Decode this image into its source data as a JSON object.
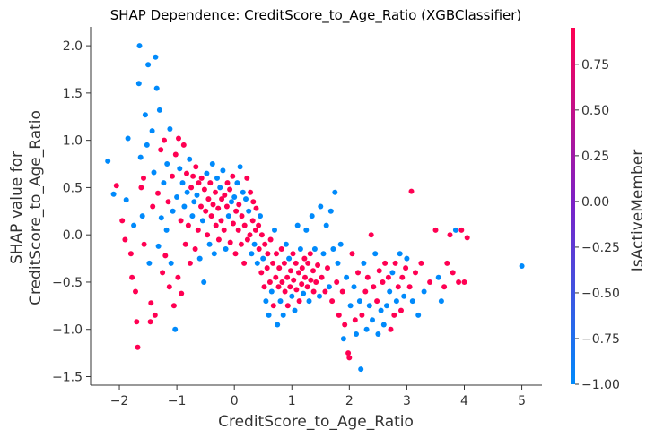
{
  "chart_data": {
    "type": "scatter",
    "title": "SHAP Dependence: CreditScore_to_Age_Ratio (XGBClassifier)",
    "xlabel": "CreditScore_to_Age_Ratio",
    "ylabel_line1": "SHAP value for",
    "ylabel_line2": "CreditScore_to_Age_Ratio",
    "xlim": [
      -2.5,
      5.35
    ],
    "ylim": [
      -1.59,
      2.2
    ],
    "xticks": [
      -2,
      -1,
      0,
      1,
      2,
      3,
      4,
      5
    ],
    "xtick_labels": [
      "−2",
      "−1",
      "0",
      "1",
      "2",
      "3",
      "4",
      "5"
    ],
    "yticks": [
      2.0,
      1.5,
      1.0,
      0.5,
      0.0,
      -0.5,
      -1.0,
      -1.5
    ],
    "ytick_labels": [
      "2.0",
      "1.5",
      "1.0",
      "0.5",
      "0.0",
      "−0.5",
      "−1.0",
      "−1.5"
    ],
    "colorbar": {
      "label": "IsActiveMember",
      "range": [
        -1.0,
        0.95
      ],
      "ticks": [
        0.75,
        0.5,
        0.25,
        0.0,
        -0.25,
        -0.5,
        -0.75,
        -1.0
      ],
      "tick_labels": [
        "0.75",
        "0.50",
        "0.25",
        "0.00",
        "−0.25",
        "−0.50",
        "−0.75",
        "−1.00"
      ],
      "color_low": "#008afb",
      "color_mid": "#7a22c8",
      "color_high": "#ff0052"
    },
    "grid": false,
    "points": [
      [
        -2.2,
        0.78,
        0
      ],
      [
        -2.1,
        0.43,
        0
      ],
      [
        -2.05,
        0.52,
        1
      ],
      [
        -1.95,
        0.15,
        1
      ],
      [
        -1.9,
        -0.05,
        1
      ],
      [
        -1.88,
        0.37,
        0
      ],
      [
        -1.85,
        1.02,
        0
      ],
      [
        -1.8,
        -0.2,
        1
      ],
      [
        -1.78,
        -0.45,
        1
      ],
      [
        -1.75,
        0.1,
        0
      ],
      [
        -1.72,
        -0.6,
        1
      ],
      [
        -1.7,
        -0.92,
        1
      ],
      [
        -1.68,
        -1.19,
        1
      ],
      [
        -1.66,
        1.6,
        0
      ],
      [
        -1.65,
        2.0,
        0
      ],
      [
        -1.63,
        0.82,
        0
      ],
      [
        -1.62,
        0.5,
        1
      ],
      [
        -1.6,
        0.2,
        0
      ],
      [
        -1.58,
        0.6,
        1
      ],
      [
        -1.57,
        -0.1,
        1
      ],
      [
        -1.55,
        1.27,
        0
      ],
      [
        -1.52,
        0.95,
        0
      ],
      [
        -1.5,
        1.8,
        0
      ],
      [
        -1.48,
        -0.3,
        0
      ],
      [
        -1.46,
        -0.92,
        1
      ],
      [
        -1.45,
        -0.72,
        1
      ],
      [
        -1.43,
        1.1,
        0
      ],
      [
        -1.42,
        0.3,
        1
      ],
      [
        -1.4,
        0.66,
        0
      ],
      [
        -1.38,
        -0.85,
        1
      ],
      [
        -1.37,
        1.88,
        0
      ],
      [
        -1.35,
        1.55,
        0
      ],
      [
        -1.33,
        0.44,
        1
      ],
      [
        -1.32,
        -0.12,
        0
      ],
      [
        -1.3,
        1.32,
        0
      ],
      [
        -1.28,
        0.9,
        1
      ],
      [
        -1.27,
        0.18,
        0
      ],
      [
        -1.25,
        -0.4,
        1
      ],
      [
        -1.23,
        0.55,
        0
      ],
      [
        -1.22,
        1.0,
        1
      ],
      [
        -1.2,
        -0.22,
        1
      ],
      [
        -1.18,
        0.05,
        0
      ],
      [
        -1.17,
        0.75,
        0
      ],
      [
        -1.15,
        0.35,
        1
      ],
      [
        -1.13,
        -0.55,
        1
      ],
      [
        -1.12,
        1.12,
        0
      ],
      [
        -1.1,
        -0.3,
        0
      ],
      [
        -1.08,
        0.62,
        1
      ],
      [
        -1.07,
        0.25,
        0
      ],
      [
        -1.05,
        -0.75,
        1
      ],
      [
        -1.03,
        -1.0,
        0
      ],
      [
        -1.02,
        0.85,
        1
      ],
      [
        -1.0,
        0.4,
        0
      ],
      [
        -0.98,
        -0.45,
        1
      ],
      [
        -0.97,
        1.02,
        1
      ],
      [
        -0.95,
        0.7,
        0
      ],
      [
        -0.93,
        0.15,
        1
      ],
      [
        -0.92,
        -0.62,
        1
      ],
      [
        -0.9,
        0.55,
        0
      ],
      [
        -0.88,
        0.95,
        1
      ],
      [
        -0.87,
        0.3,
        0
      ],
      [
        -0.85,
        -0.1,
        1
      ],
      [
        -0.83,
        0.65,
        1
      ],
      [
        -0.82,
        0.45,
        0
      ],
      [
        -0.8,
        0.1,
        1
      ],
      [
        -0.78,
        0.8,
        0
      ],
      [
        -0.77,
        -0.3,
        1
      ],
      [
        -0.75,
        0.5,
        1
      ],
      [
        -0.73,
        0.2,
        0
      ],
      [
        -0.72,
        0.62,
        1
      ],
      [
        -0.7,
        0.35,
        0
      ],
      [
        -0.68,
        -0.15,
        1
      ],
      [
        -0.67,
        0.72,
        1
      ],
      [
        -0.65,
        0.42,
        0
      ],
      [
        -0.63,
        0.05,
        1
      ],
      [
        -0.62,
        0.55,
        1
      ],
      [
        -0.6,
        -0.25,
        0
      ],
      [
        -0.58,
        0.3,
        1
      ],
      [
        -0.57,
        0.6,
        1
      ],
      [
        -0.55,
        0.15,
        0
      ],
      [
        -0.53,
        -0.5,
        0
      ],
      [
        -0.52,
        0.48,
        1
      ],
      [
        -0.5,
        0.25,
        1
      ],
      [
        -0.48,
        0.65,
        0
      ],
      [
        -0.47,
        0.0,
        1
      ],
      [
        -0.45,
        0.38,
        1
      ],
      [
        -0.43,
        -0.1,
        0
      ],
      [
        -0.42,
        0.55,
        1
      ],
      [
        -0.4,
        0.2,
        1
      ],
      [
        -0.38,
        0.75,
        0
      ],
      [
        -0.37,
        0.32,
        1
      ],
      [
        -0.35,
        -0.2,
        0
      ],
      [
        -0.33,
        0.45,
        1
      ],
      [
        -0.32,
        0.1,
        1
      ],
      [
        -0.3,
        0.6,
        0
      ],
      [
        -0.28,
        0.28,
        1
      ],
      [
        -0.27,
        -0.05,
        1
      ],
      [
        -0.25,
        0.5,
        0
      ],
      [
        -0.23,
        0.15,
        1
      ],
      [
        -0.22,
        0.38,
        1
      ],
      [
        -0.2,
        0.68,
        0
      ],
      [
        -0.18,
        0.05,
        1
      ],
      [
        -0.17,
        0.42,
        1
      ],
      [
        -0.15,
        -0.15,
        0
      ],
      [
        -0.13,
        0.3,
        1
      ],
      [
        -0.12,
        0.55,
        1
      ],
      [
        -0.1,
        0.2,
        0
      ],
      [
        -0.08,
        0.48,
        1
      ],
      [
        -0.07,
        -0.08,
        1
      ],
      [
        -0.05,
        0.35,
        0
      ],
      [
        -0.03,
        0.62,
        1
      ],
      [
        -0.02,
        0.12,
        1
      ],
      [
        0.0,
        0.4,
        0
      ],
      [
        0.02,
        -0.2,
        1
      ],
      [
        0.03,
        0.25,
        1
      ],
      [
        0.05,
        0.55,
        0
      ],
      [
        0.07,
        0.05,
        1
      ],
      [
        0.08,
        0.32,
        1
      ],
      [
        0.1,
        0.72,
        0
      ],
      [
        0.12,
        -0.1,
        1
      ],
      [
        0.13,
        0.2,
        1
      ],
      [
        0.15,
        0.45,
        0
      ],
      [
        0.17,
        -0.3,
        1
      ],
      [
        0.18,
        0.1,
        1
      ],
      [
        0.2,
        0.38,
        0
      ],
      [
        0.22,
        0.6,
        1
      ],
      [
        0.23,
        -0.05,
        1
      ],
      [
        0.25,
        0.25,
        0
      ],
      [
        0.27,
        0.0,
        1
      ],
      [
        0.28,
        0.45,
        1
      ],
      [
        0.3,
        -0.2,
        0
      ],
      [
        0.32,
        0.15,
        1
      ],
      [
        0.33,
        0.35,
        1
      ],
      [
        0.35,
        -0.1,
        0
      ],
      [
        0.37,
        0.05,
        1
      ],
      [
        0.38,
        0.28,
        1
      ],
      [
        0.4,
        -0.3,
        0
      ],
      [
        0.42,
        0.1,
        1
      ],
      [
        0.43,
        -0.15,
        1
      ],
      [
        0.45,
        0.2,
        0
      ],
      [
        0.47,
        -0.4,
        1
      ],
      [
        0.48,
        0.0,
        1
      ],
      [
        0.5,
        -0.25,
        0
      ],
      [
        0.52,
        -0.55,
        1
      ],
      [
        0.53,
        -0.1,
        1
      ],
      [
        0.55,
        -0.7,
        0
      ],
      [
        0.57,
        -0.35,
        1
      ],
      [
        0.58,
        -0.2,
        1
      ],
      [
        0.6,
        -0.85,
        0
      ],
      [
        0.62,
        -0.5,
        1
      ],
      [
        0.63,
        -0.05,
        1
      ],
      [
        0.65,
        -0.6,
        0
      ],
      [
        0.67,
        -0.3,
        1
      ],
      [
        0.68,
        -0.75,
        1
      ],
      [
        0.7,
        0.05,
        0
      ],
      [
        0.72,
        -0.45,
        1
      ],
      [
        0.73,
        -0.2,
        1
      ],
      [
        0.75,
        -0.95,
        0
      ],
      [
        0.77,
        -0.55,
        1
      ],
      [
        0.78,
        -0.35,
        1
      ],
      [
        0.8,
        -0.7,
        0
      ],
      [
        0.82,
        -0.15,
        1
      ],
      [
        0.83,
        -0.5,
        1
      ],
      [
        0.85,
        -0.85,
        0
      ],
      [
        0.87,
        -0.3,
        1
      ],
      [
        0.88,
        -0.6,
        1
      ],
      [
        0.9,
        -0.1,
        0
      ],
      [
        0.92,
        -0.45,
        1
      ],
      [
        0.93,
        -0.75,
        1
      ],
      [
        0.95,
        -0.25,
        0
      ],
      [
        0.97,
        -0.55,
        1
      ],
      [
        0.98,
        -0.38,
        1
      ],
      [
        1.0,
        -0.65,
        0
      ],
      [
        1.02,
        -0.2,
        1
      ],
      [
        1.03,
        -0.48,
        1
      ],
      [
        1.05,
        -0.8,
        0
      ],
      [
        1.07,
        -0.3,
        1
      ],
      [
        1.08,
        -0.58,
        1
      ],
      [
        1.1,
        0.1,
        0
      ],
      [
        1.12,
        -0.4,
        1
      ],
      [
        1.13,
        -0.7,
        1
      ],
      [
        1.15,
        -0.15,
        0
      ],
      [
        1.17,
        -0.52,
        1
      ],
      [
        1.18,
        -0.35,
        1
      ],
      [
        1.2,
        -0.62,
        0
      ],
      [
        1.22,
        -0.25,
        1
      ],
      [
        1.23,
        -0.45,
        1
      ],
      [
        1.25,
        0.05,
        0
      ],
      [
        1.27,
        -0.55,
        1
      ],
      [
        1.28,
        -0.3,
        1
      ],
      [
        1.3,
        -0.7,
        0
      ],
      [
        1.32,
        -0.2,
        1
      ],
      [
        1.33,
        -0.48,
        1
      ],
      [
        1.35,
        0.2,
        0
      ],
      [
        1.37,
        -0.38,
        1
      ],
      [
        1.38,
        -0.6,
        1
      ],
      [
        1.4,
        -0.15,
        0
      ],
      [
        1.42,
        -0.5,
        1
      ],
      [
        1.45,
        -0.32,
        1
      ],
      [
        1.48,
        -0.65,
        0
      ],
      [
        1.5,
        0.3,
        0
      ],
      [
        1.52,
        -0.45,
        1
      ],
      [
        1.55,
        -0.2,
        0
      ],
      [
        1.58,
        -0.6,
        1
      ],
      [
        1.6,
        0.1,
        0
      ],
      [
        1.62,
        -0.35,
        1
      ],
      [
        1.65,
        -0.55,
        0
      ],
      [
        1.68,
        0.25,
        0
      ],
      [
        1.7,
        -0.7,
        1
      ],
      [
        1.72,
        -0.15,
        0
      ],
      [
        1.75,
        0.45,
        0
      ],
      [
        1.78,
        -0.5,
        1
      ],
      [
        1.8,
        -0.3,
        0
      ],
      [
        1.82,
        -0.85,
        1
      ],
      [
        1.85,
        -0.1,
        0
      ],
      [
        1.88,
        -0.6,
        1
      ],
      [
        1.9,
        -1.1,
        0
      ],
      [
        1.92,
        -0.95,
        1
      ],
      [
        1.95,
        -0.45,
        0
      ],
      [
        1.98,
        -1.25,
        1
      ],
      [
        2.0,
        -1.3,
        1
      ],
      [
        2.02,
        -0.75,
        0
      ],
      [
        2.05,
        -0.2,
        1
      ],
      [
        2.08,
        -0.55,
        0
      ],
      [
        2.1,
        -0.9,
        1
      ],
      [
        2.12,
        -1.05,
        0
      ],
      [
        2.15,
        -0.4,
        1
      ],
      [
        2.18,
        -0.7,
        0
      ],
      [
        2.2,
        -1.42,
        0
      ],
      [
        2.22,
        -0.85,
        1
      ],
      [
        2.25,
        -0.3,
        0
      ],
      [
        2.28,
        -0.6,
        1
      ],
      [
        2.3,
        -1.0,
        0
      ],
      [
        2.32,
        -0.45,
        1
      ],
      [
        2.35,
        -0.75,
        0
      ],
      [
        2.38,
        0.0,
        1
      ],
      [
        2.4,
        -0.9,
        0
      ],
      [
        2.42,
        -0.55,
        1
      ],
      [
        2.45,
        -0.2,
        0
      ],
      [
        2.48,
        -0.7,
        1
      ],
      [
        2.5,
        -1.05,
        0
      ],
      [
        2.52,
        -0.38,
        1
      ],
      [
        2.55,
        -0.8,
        0
      ],
      [
        2.58,
        -0.5,
        1
      ],
      [
        2.6,
        -0.95,
        0
      ],
      [
        2.62,
        -0.3,
        1
      ],
      [
        2.65,
        -0.75,
        0
      ],
      [
        2.68,
        -0.45,
        1
      ],
      [
        2.7,
        -0.6,
        0
      ],
      [
        2.72,
        -1.0,
        1
      ],
      [
        2.75,
        -0.4,
        0
      ],
      [
        2.78,
        -0.85,
        1
      ],
      [
        2.8,
        -0.3,
        1
      ],
      [
        2.82,
        -0.7,
        0
      ],
      [
        2.85,
        -0.55,
        1
      ],
      [
        2.88,
        -0.2,
        0
      ],
      [
        2.9,
        -0.8,
        1
      ],
      [
        2.92,
        -0.45,
        1
      ],
      [
        2.95,
        -0.65,
        0
      ],
      [
        2.98,
        -0.35,
        1
      ],
      [
        3.0,
        -0.25,
        0
      ],
      [
        3.05,
        -0.55,
        1
      ],
      [
        3.08,
        0.46,
        1
      ],
      [
        3.1,
        -0.7,
        0
      ],
      [
        3.15,
        -0.4,
        1
      ],
      [
        3.2,
        -0.85,
        0
      ],
      [
        3.25,
        -0.3,
        1
      ],
      [
        3.3,
        -0.6,
        0
      ],
      [
        3.4,
        -0.5,
        1
      ],
      [
        3.5,
        0.05,
        1
      ],
      [
        3.55,
        -0.45,
        0
      ],
      [
        3.6,
        -0.7,
        0
      ],
      [
        3.65,
        -0.55,
        1
      ],
      [
        3.7,
        -0.3,
        1
      ],
      [
        3.75,
        0.0,
        1
      ],
      [
        3.8,
        -0.4,
        1
      ],
      [
        3.85,
        0.05,
        0
      ],
      [
        3.9,
        -0.5,
        1
      ],
      [
        3.95,
        0.05,
        1
      ],
      [
        4.0,
        -0.5,
        1
      ],
      [
        4.05,
        -0.03,
        1
      ],
      [
        5.0,
        -0.33,
        0
      ]
    ]
  }
}
